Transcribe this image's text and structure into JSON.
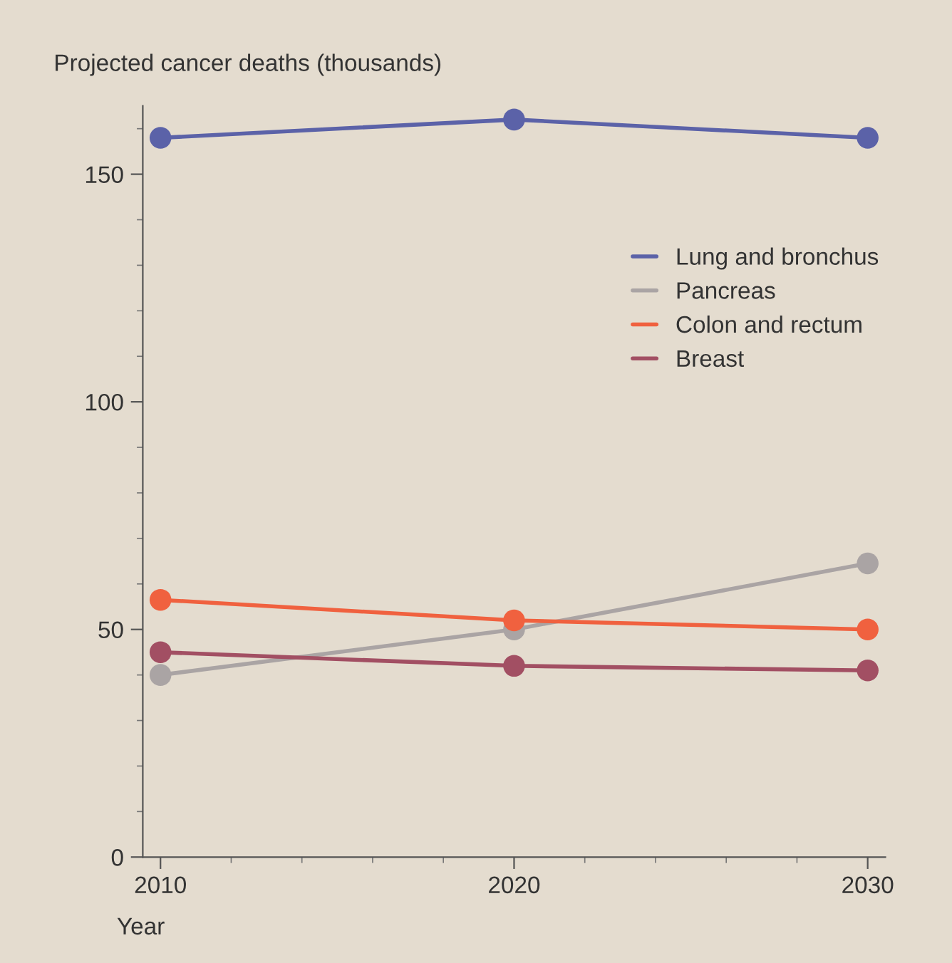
{
  "chart_data": {
    "type": "line",
    "ylabel": "Projected cancer deaths (thousands)",
    "xlabel": "Year",
    "x": [
      2010,
      2020,
      2030
    ],
    "xlim": [
      2009.5,
      2030.5
    ],
    "xticks": [
      2010,
      2020,
      2030
    ],
    "ylim": [
      0,
      165
    ],
    "yticks": [
      0,
      50,
      100,
      150
    ],
    "grid": false,
    "legend": "top right",
    "marker": "circle",
    "line_style": "solid",
    "series": [
      {
        "name": "Lung and bronchus",
        "color": "#5b62a8",
        "values": [
          158,
          162,
          158
        ]
      },
      {
        "name": "Pancreas",
        "color": "#aaa4a4",
        "values": [
          40,
          50,
          64.5
        ]
      },
      {
        "name": "Colon and rectum",
        "color": "#f0613f",
        "values": [
          56.5,
          52,
          50
        ]
      },
      {
        "name": "Breast",
        "color": "#a24f63",
        "values": [
          45,
          42,
          41
        ]
      }
    ]
  }
}
